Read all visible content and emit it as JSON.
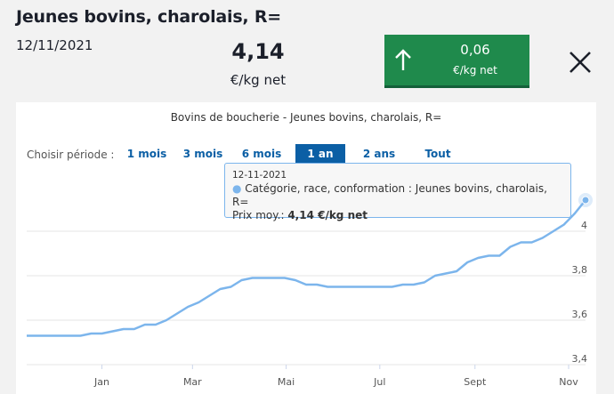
{
  "header": {
    "title": "Jeunes bovins, charolais, R=",
    "date": "12/11/2021",
    "price": "4,14",
    "unit": "€/kg net",
    "variation": {
      "value": "0,06",
      "unit": "€/kg net",
      "direction": "up",
      "color": "#1f8a4c"
    }
  },
  "chart": {
    "title": "Bovins de boucherie - Jeunes bovins, charolais, R=",
    "period_label": "Choisir période :",
    "periods": [
      "1 mois",
      "3 mois",
      "6 mois",
      "1 an",
      "2 ans",
      "Tout"
    ],
    "active_period": "1 an",
    "tooltip": {
      "date": "12-11-2021",
      "series_line": "Catégorie, race, conformation : Jeunes bovins, charolais, R=",
      "value_label": "Prix moy.: ",
      "value": "4,14 €/kg net"
    }
  },
  "chart_data": {
    "type": "line",
    "title": "Bovins de boucherie - Jeunes bovins, charolais, R=",
    "line_color": "#7cb5ec",
    "x_tick_labels": [
      "Jan",
      "Mar",
      "Mai",
      "Jul",
      "Sept",
      "Nov"
    ],
    "y_tick_labels": [
      "3,4",
      "3,6",
      "3,8",
      "4"
    ],
    "ylim": [
      3.4,
      4.2
    ],
    "grid": true,
    "x": [
      "2020-11-13",
      "2020-11-20",
      "2020-11-27",
      "2020-12-04",
      "2020-12-11",
      "2020-12-18",
      "2020-12-25",
      "2021-01-01",
      "2021-01-08",
      "2021-01-15",
      "2021-01-22",
      "2021-01-29",
      "2021-02-05",
      "2021-02-12",
      "2021-02-19",
      "2021-02-26",
      "2021-03-05",
      "2021-03-12",
      "2021-03-19",
      "2021-03-26",
      "2021-04-02",
      "2021-04-09",
      "2021-04-16",
      "2021-04-23",
      "2021-04-30",
      "2021-05-07",
      "2021-05-14",
      "2021-05-21",
      "2021-05-28",
      "2021-06-04",
      "2021-06-11",
      "2021-06-18",
      "2021-06-25",
      "2021-07-02",
      "2021-07-09",
      "2021-07-16",
      "2021-07-23",
      "2021-07-30",
      "2021-08-06",
      "2021-08-13",
      "2021-08-20",
      "2021-08-27",
      "2021-09-03",
      "2021-09-10",
      "2021-09-17",
      "2021-09-24",
      "2021-10-01",
      "2021-10-08",
      "2021-10-15",
      "2021-10-22",
      "2021-10-29",
      "2021-11-05",
      "2021-11-12"
    ],
    "y": [
      3.53,
      3.53,
      3.53,
      3.53,
      3.53,
      3.53,
      3.54,
      3.54,
      3.55,
      3.56,
      3.56,
      3.58,
      3.58,
      3.6,
      3.63,
      3.66,
      3.68,
      3.71,
      3.74,
      3.75,
      3.78,
      3.79,
      3.79,
      3.79,
      3.79,
      3.78,
      3.76,
      3.76,
      3.75,
      3.75,
      3.75,
      3.75,
      3.75,
      3.75,
      3.75,
      3.76,
      3.76,
      3.77,
      3.8,
      3.81,
      3.82,
      3.86,
      3.88,
      3.89,
      3.89,
      3.93,
      3.95,
      3.95,
      3.97,
      4.0,
      4.03,
      4.08,
      4.14
    ]
  }
}
